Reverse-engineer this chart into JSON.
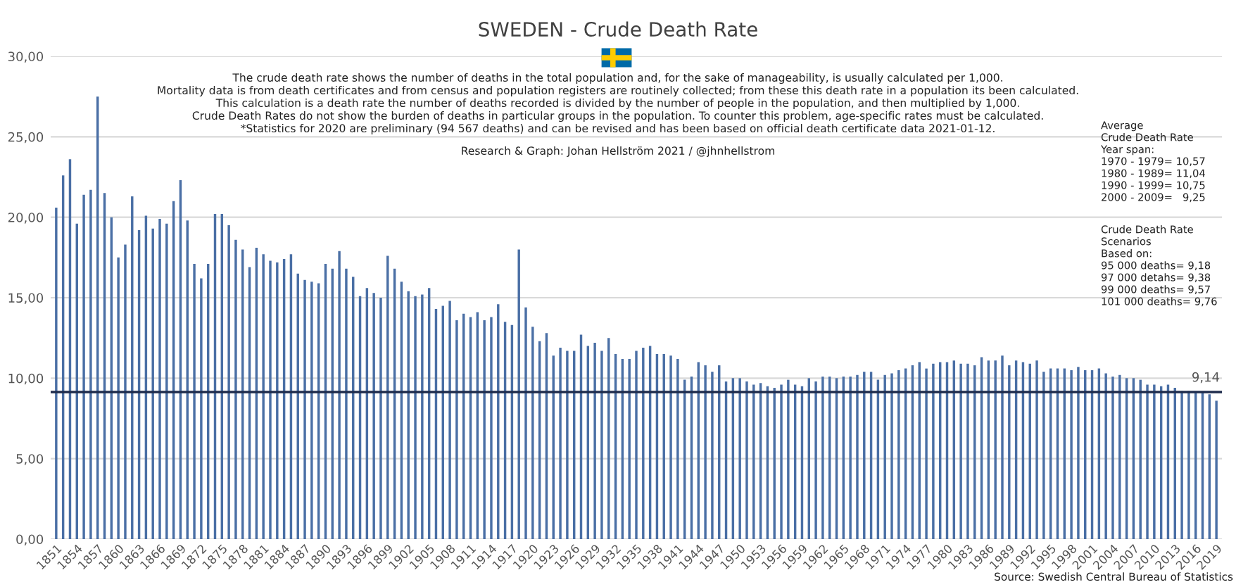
{
  "chart_data": {
    "type": "bar",
    "title": "SWEDEN - Crude Death Rate",
    "categories": [
      "1851",
      null,
      null,
      "1854",
      null,
      null,
      "1857",
      null,
      null,
      "1860",
      null,
      null,
      "1863",
      null,
      null,
      "1866",
      null,
      null,
      "1869",
      null,
      null,
      "1872",
      null,
      null,
      "1875",
      null,
      null,
      "1878",
      null,
      null,
      "1881",
      null,
      null,
      "1884",
      null,
      null,
      "1887",
      null,
      null,
      "1890",
      null,
      null,
      "1893",
      null,
      null,
      "1896",
      null,
      null,
      "1899",
      null,
      null,
      "1902",
      null,
      null,
      "1905",
      null,
      null,
      "1908",
      null,
      null,
      "1911",
      null,
      null,
      "1914",
      null,
      null,
      "1917",
      null,
      null,
      "1920",
      null,
      null,
      "1923",
      null,
      null,
      "1926",
      null,
      null,
      "1929",
      null,
      null,
      "1932",
      null,
      null,
      "1935",
      null,
      null,
      "1938",
      null,
      null,
      "1941",
      null,
      null,
      "1944",
      null,
      null,
      "1947",
      null,
      null,
      "1950",
      null,
      null,
      "1953",
      null,
      null,
      "1956",
      null,
      null,
      "1959",
      null,
      null,
      "1962",
      null,
      null,
      "1965",
      null,
      null,
      "1968",
      null,
      null,
      "1971",
      null,
      null,
      "1974",
      null,
      null,
      "1977",
      null,
      null,
      "1980",
      null,
      null,
      "1983",
      null,
      null,
      "1986",
      null,
      null,
      "1989",
      null,
      null,
      "1992",
      null,
      null,
      "1995",
      null,
      null,
      "1998",
      null,
      null,
      "2001",
      null,
      null,
      "2004",
      null,
      null,
      "2007",
      null,
      null,
      "2010",
      null,
      null,
      "2013",
      null,
      null,
      "2016",
      null,
      null,
      "2019"
    ],
    "values": [
      20.6,
      22.6,
      23.6,
      19.6,
      21.4,
      21.7,
      27.5,
      21.5,
      20.0,
      17.5,
      18.3,
      21.3,
      19.2,
      20.1,
      19.3,
      19.9,
      19.6,
      21.0,
      22.3,
      19.8,
      17.1,
      16.2,
      17.1,
      20.2,
      20.2,
      19.5,
      18.6,
      18.0,
      16.9,
      18.1,
      17.7,
      17.3,
      17.2,
      17.4,
      17.7,
      16.5,
      16.1,
      16.0,
      15.9,
      17.1,
      16.8,
      17.9,
      16.8,
      16.3,
      15.1,
      15.6,
      15.3,
      15.0,
      17.6,
      16.8,
      16.0,
      15.4,
      15.1,
      15.2,
      15.6,
      14.3,
      14.5,
      14.8,
      13.6,
      14.0,
      13.8,
      14.1,
      13.6,
      13.8,
      14.6,
      13.5,
      13.3,
      18.0,
      14.4,
      13.2,
      12.3,
      12.8,
      11.4,
      11.9,
      11.7,
      11.7,
      12.7,
      12.0,
      12.2,
      11.7,
      12.5,
      11.5,
      11.2,
      11.2,
      11.7,
      11.9,
      12.0,
      11.5,
      11.5,
      11.4,
      11.2,
      9.9,
      10.1,
      11.0,
      10.8,
      10.4,
      10.8,
      9.8,
      10.0,
      10.0,
      9.8,
      9.6,
      9.7,
      9.5,
      9.4,
      9.6,
      9.9,
      9.6,
      9.5,
      10.0,
      9.8,
      10.1,
      10.1,
      10.0,
      10.1,
      10.1,
      10.2,
      10.4,
      10.4,
      9.9,
      10.2,
      10.3,
      10.5,
      10.6,
      10.8,
      11.0,
      10.6,
      10.9,
      11.0,
      11.0,
      11.1,
      10.9,
      10.9,
      10.8,
      11.3,
      11.1,
      11.1,
      11.4,
      10.8,
      11.1,
      11.0,
      10.9,
      11.1,
      10.4,
      10.6,
      10.6,
      10.6,
      10.5,
      10.7,
      10.5,
      10.5,
      10.6,
      10.3,
      10.1,
      10.2,
      10.0,
      10.0,
      9.9,
      9.6,
      9.6,
      9.5,
      9.6,
      9.4,
      9.2,
      9.2,
      9.1,
      9.1,
      9.0,
      8.6
    ],
    "color": "#4a6fa5",
    "ylim": [
      0,
      30
    ],
    "yticks": [
      {
        "value": 0,
        "label": "0,00"
      },
      {
        "value": 5,
        "label": "5,00"
      },
      {
        "value": 10,
        "label": "10,00"
      },
      {
        "value": 15,
        "label": "15,00"
      },
      {
        "value": 20,
        "label": "20,00"
      },
      {
        "value": 25,
        "label": "25,00"
      },
      {
        "value": 30,
        "label": "30,00"
      }
    ],
    "grid": "y",
    "ref_lines": [
      {
        "axis": "y",
        "value": 9.14,
        "label": "9,14",
        "color": "#1f2d4d"
      }
    ],
    "annotations": [
      "The crude death rate shows the number of deaths in the total population and, for the sake of manageability, is usually calculated per 1,000.\nMortality data is from death certificates and from census and population registers are routinely collected; from these this death rate in a population its been calculated.\nThis calculation is a death rate the number of deaths recorded is divided by the number of people in the population, and then multiplied by 1,000.\nCrude Death Rates do not show the burden of deaths in particular groups in the population. To counter this problem, age-specific rates must be calculated.\n*Statistics for 2020 are preliminary (94 567 deaths) and can be revised and has been based on official death certificate data 2021-01-12.",
      "Research & Graph: Johan Hellström 2021 / @jhnhellstrom",
      "Average\nCrude Death Rate\nYear span:\n1970 - 1979= 10,57\n1980 - 1989= 11,04\n1990 - 1999= 10,75\n2000 - 2009=   9,25",
      "Crude Death Rate\nScenarios\nBased on:\n95 000 deaths= 9,18\n97 000 detahs= 9,38\n99 000 deaths= 9,57\n101 000 deaths= 9,76",
      "Source: Swedish Central Bureau of Statistics"
    ]
  }
}
